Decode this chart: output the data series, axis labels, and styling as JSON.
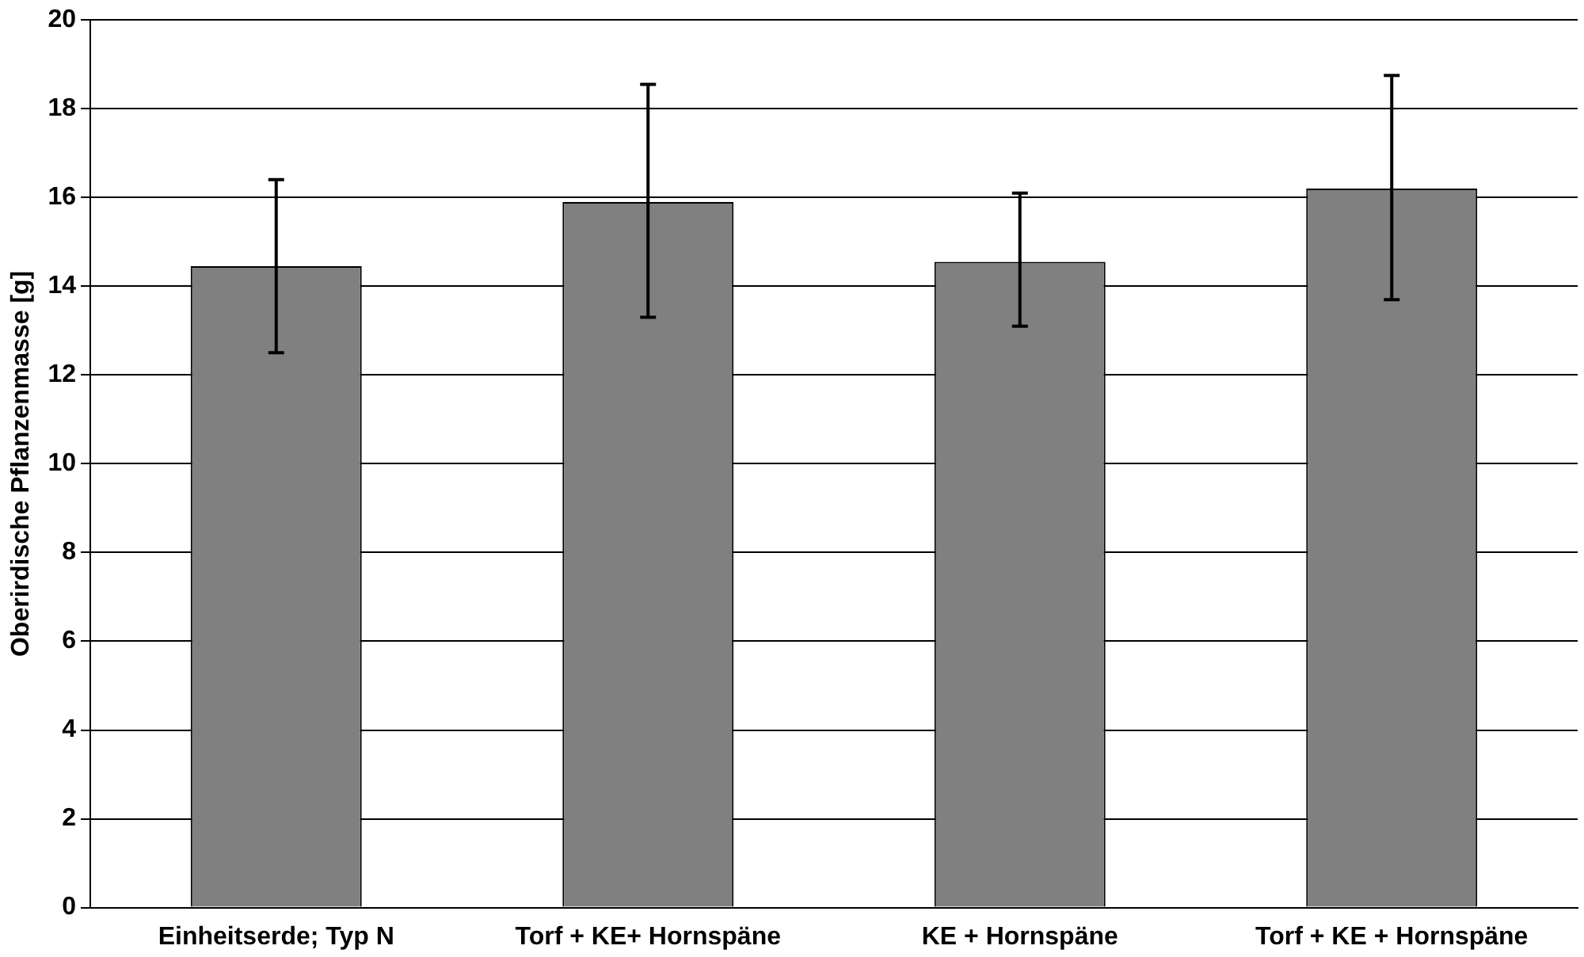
{
  "chart_data": {
    "type": "bar",
    "ylabel": "Oberirdische Pflanzenmasse [g]",
    "categories": [
      "Einheitserde; Typ N",
      "Torf + KE+ Hornspäne",
      "KE + Hornspäne",
      "Torf + KE + Hornspäne"
    ],
    "values": [
      14.45,
      15.9,
      14.55,
      16.2
    ],
    "errors": [
      [
        12.5,
        16.4
      ],
      [
        13.3,
        18.55
      ],
      [
        13.1,
        16.1
      ],
      [
        13.7,
        18.75
      ]
    ],
    "color": "#808080",
    "ylim": [
      0,
      20
    ],
    "yticks": [
      0,
      2,
      4,
      6,
      8,
      10,
      12,
      14,
      16,
      18,
      20
    ],
    "grid": "y",
    "legend": false
  }
}
